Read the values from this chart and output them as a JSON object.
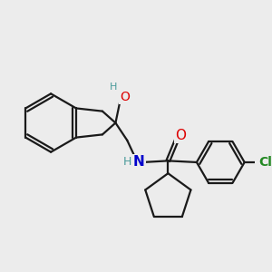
{
  "background_color": "#ececec",
  "bond_color": "#1a1a1a",
  "bond_width": 1.6,
  "atom_colors": {
    "O": "#dd0000",
    "N": "#0000cc",
    "Cl": "#228822",
    "H_teal": "#4a9a9a"
  },
  "figsize": [
    3.0,
    3.0
  ],
  "dpi": 100
}
